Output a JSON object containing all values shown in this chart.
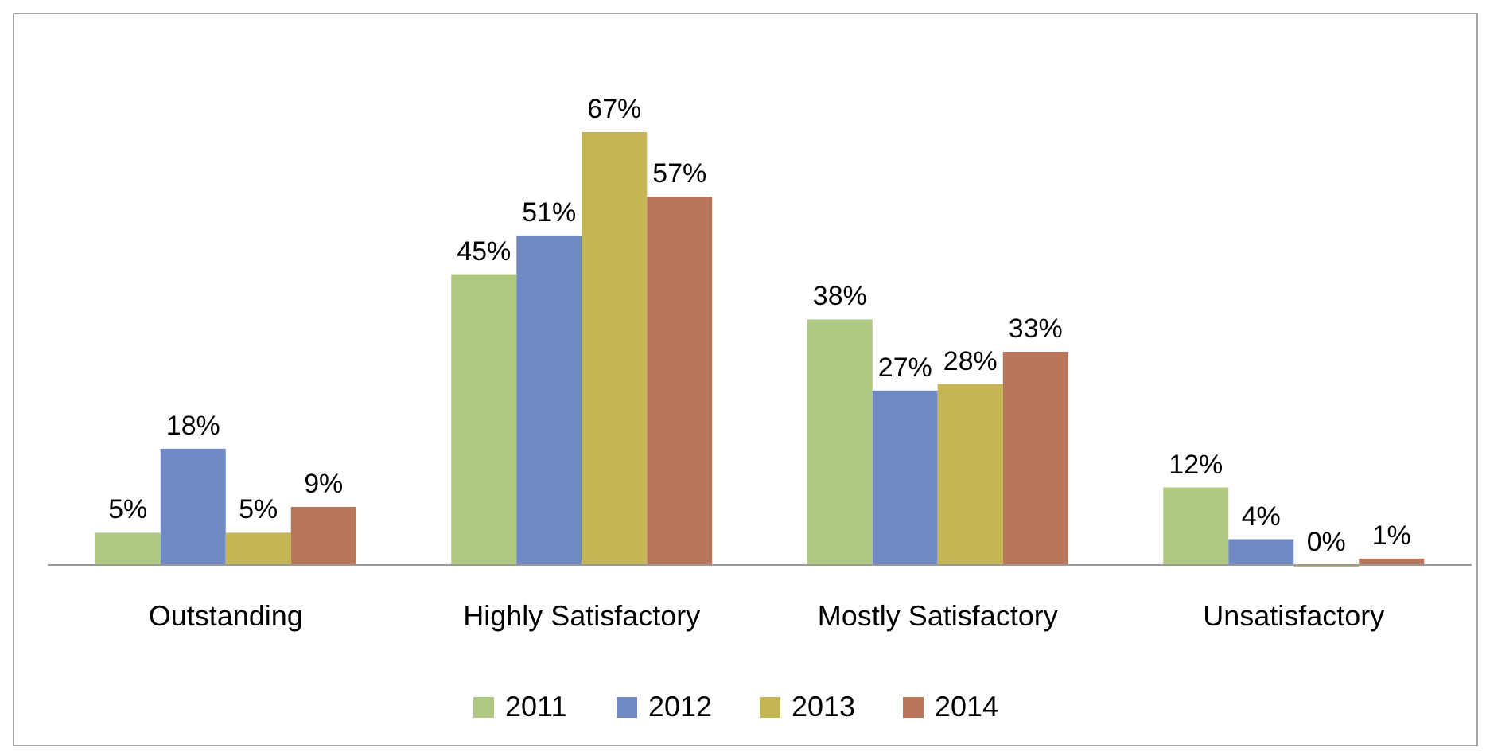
{
  "chart_data": {
    "type": "bar",
    "categories": [
      "Outstanding",
      "Highly Satisfactory",
      "Mostly Satisfactory",
      "Unsatisfactory"
    ],
    "series": [
      {
        "name": "2011",
        "color": "#afc983",
        "values": [
          5,
          45,
          38,
          12
        ],
        "value_labels": [
          "5%",
          "45%",
          "38%",
          "12%"
        ]
      },
      {
        "name": "2012",
        "color": "#7189c3",
        "values": [
          18,
          51,
          27,
          4
        ],
        "value_labels": [
          "18%",
          "51%",
          "27%",
          "4%"
        ]
      },
      {
        "name": "2013",
        "color": "#c6b554",
        "values": [
          5,
          67,
          28,
          0
        ],
        "value_labels": [
          "5%",
          "67%",
          "28%",
          "0%"
        ]
      },
      {
        "name": "2014",
        "color": "#b8775a",
        "values": [
          9,
          57,
          33,
          1
        ],
        "value_labels": [
          "9%",
          "57%",
          "33%",
          "1%"
        ]
      }
    ],
    "legend": "bottom"
  }
}
